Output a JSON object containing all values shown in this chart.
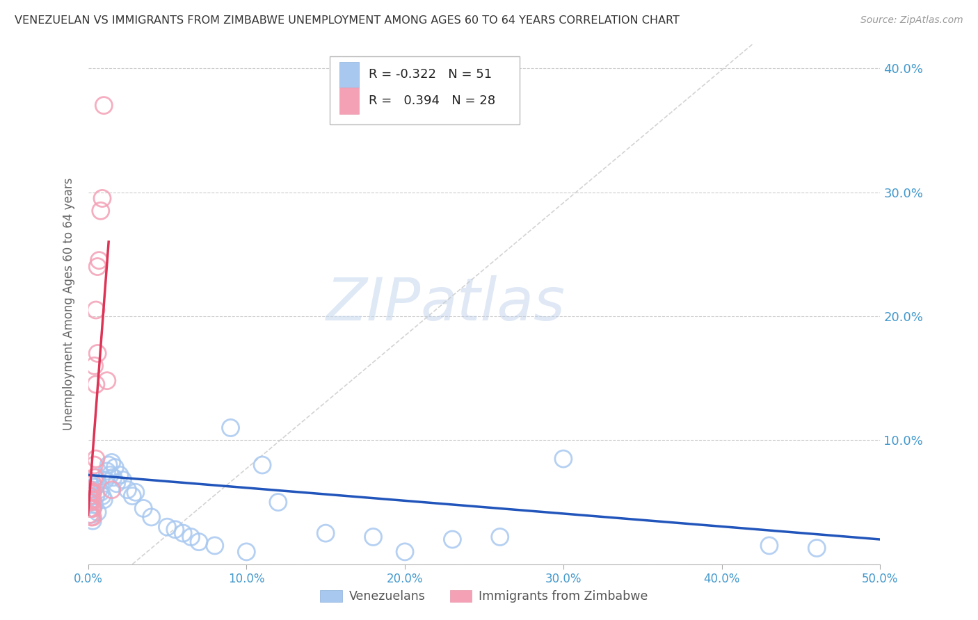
{
  "title": "VENEZUELAN VS IMMIGRANTS FROM ZIMBABWE UNEMPLOYMENT AMONG AGES 60 TO 64 YEARS CORRELATION CHART",
  "source": "Source: ZipAtlas.com",
  "ylabel": "Unemployment Among Ages 60 to 64 years",
  "xlim": [
    0.0,
    0.5
  ],
  "ylim": [
    0.0,
    0.42
  ],
  "xticks": [
    0.0,
    0.1,
    0.2,
    0.3,
    0.4,
    0.5
  ],
  "yticks": [
    0.0,
    0.1,
    0.2,
    0.3,
    0.4
  ],
  "ytick_labels_right": [
    "",
    "10.0%",
    "20.0%",
    "30.0%",
    "40.0%"
  ],
  "xtick_labels": [
    "0.0%",
    "10.0%",
    "20.0%",
    "30.0%",
    "40.0%",
    "50.0%"
  ],
  "venezuelan_color": "#a8c8f0",
  "zimbabwe_color": "#f4a0b5",
  "trend_blue_color": "#2255bb",
  "trend_pink_color": "#dd3355",
  "ref_line_color": "#cccccc",
  "grid_color": "#cccccc",
  "axis_label_color": "#4499cc",
  "legend_R_blue": "-0.322",
  "legend_N_blue": "51",
  "legend_R_pink": "0.394",
  "legend_N_pink": "28",
  "watermark_zip": "ZIP",
  "watermark_atlas": "atlas",
  "venezuelan_x": [
    0.001,
    0.001,
    0.002,
    0.002,
    0.002,
    0.003,
    0.003,
    0.003,
    0.004,
    0.004,
    0.005,
    0.005,
    0.006,
    0.006,
    0.007,
    0.008,
    0.009,
    0.01,
    0.011,
    0.012,
    0.013,
    0.014,
    0.015,
    0.016,
    0.017,
    0.018,
    0.02,
    0.022,
    0.025,
    0.028,
    0.03,
    0.035,
    0.04,
    0.05,
    0.055,
    0.06,
    0.065,
    0.07,
    0.08,
    0.09,
    0.1,
    0.11,
    0.12,
    0.15,
    0.18,
    0.2,
    0.23,
    0.26,
    0.3,
    0.43,
    0.46
  ],
  "venezuelan_y": [
    0.065,
    0.055,
    0.06,
    0.05,
    0.04,
    0.058,
    0.045,
    0.035,
    0.062,
    0.048,
    0.07,
    0.055,
    0.065,
    0.042,
    0.06,
    0.058,
    0.055,
    0.052,
    0.068,
    0.075,
    0.08,
    0.072,
    0.082,
    0.07,
    0.078,
    0.065,
    0.072,
    0.068,
    0.06,
    0.055,
    0.058,
    0.045,
    0.038,
    0.03,
    0.028,
    0.025,
    0.022,
    0.018,
    0.015,
    0.11,
    0.01,
    0.08,
    0.05,
    0.025,
    0.022,
    0.01,
    0.02,
    0.022,
    0.085,
    0.015,
    0.013
  ],
  "zimbabwe_x": [
    0.001,
    0.001,
    0.001,
    0.001,
    0.001,
    0.002,
    0.002,
    0.002,
    0.002,
    0.003,
    0.003,
    0.003,
    0.003,
    0.003,
    0.004,
    0.004,
    0.004,
    0.005,
    0.005,
    0.005,
    0.006,
    0.006,
    0.007,
    0.008,
    0.009,
    0.01,
    0.012,
    0.015
  ],
  "zimbabwe_y": [
    0.06,
    0.055,
    0.05,
    0.045,
    0.04,
    0.058,
    0.052,
    0.045,
    0.038,
    0.065,
    0.058,
    0.052,
    0.045,
    0.038,
    0.07,
    0.08,
    0.16,
    0.085,
    0.145,
    0.205,
    0.17,
    0.24,
    0.245,
    0.285,
    0.295,
    0.37,
    0.148,
    0.06
  ],
  "ref_line_x": [
    0.028,
    0.42
  ],
  "ref_line_y": [
    0.0,
    0.42
  ],
  "blue_trend_x": [
    0.0,
    0.5
  ],
  "blue_trend_y": [
    0.072,
    0.02
  ],
  "pink_trend_x": [
    0.0,
    0.013
  ],
  "pink_trend_y": [
    0.04,
    0.26
  ]
}
